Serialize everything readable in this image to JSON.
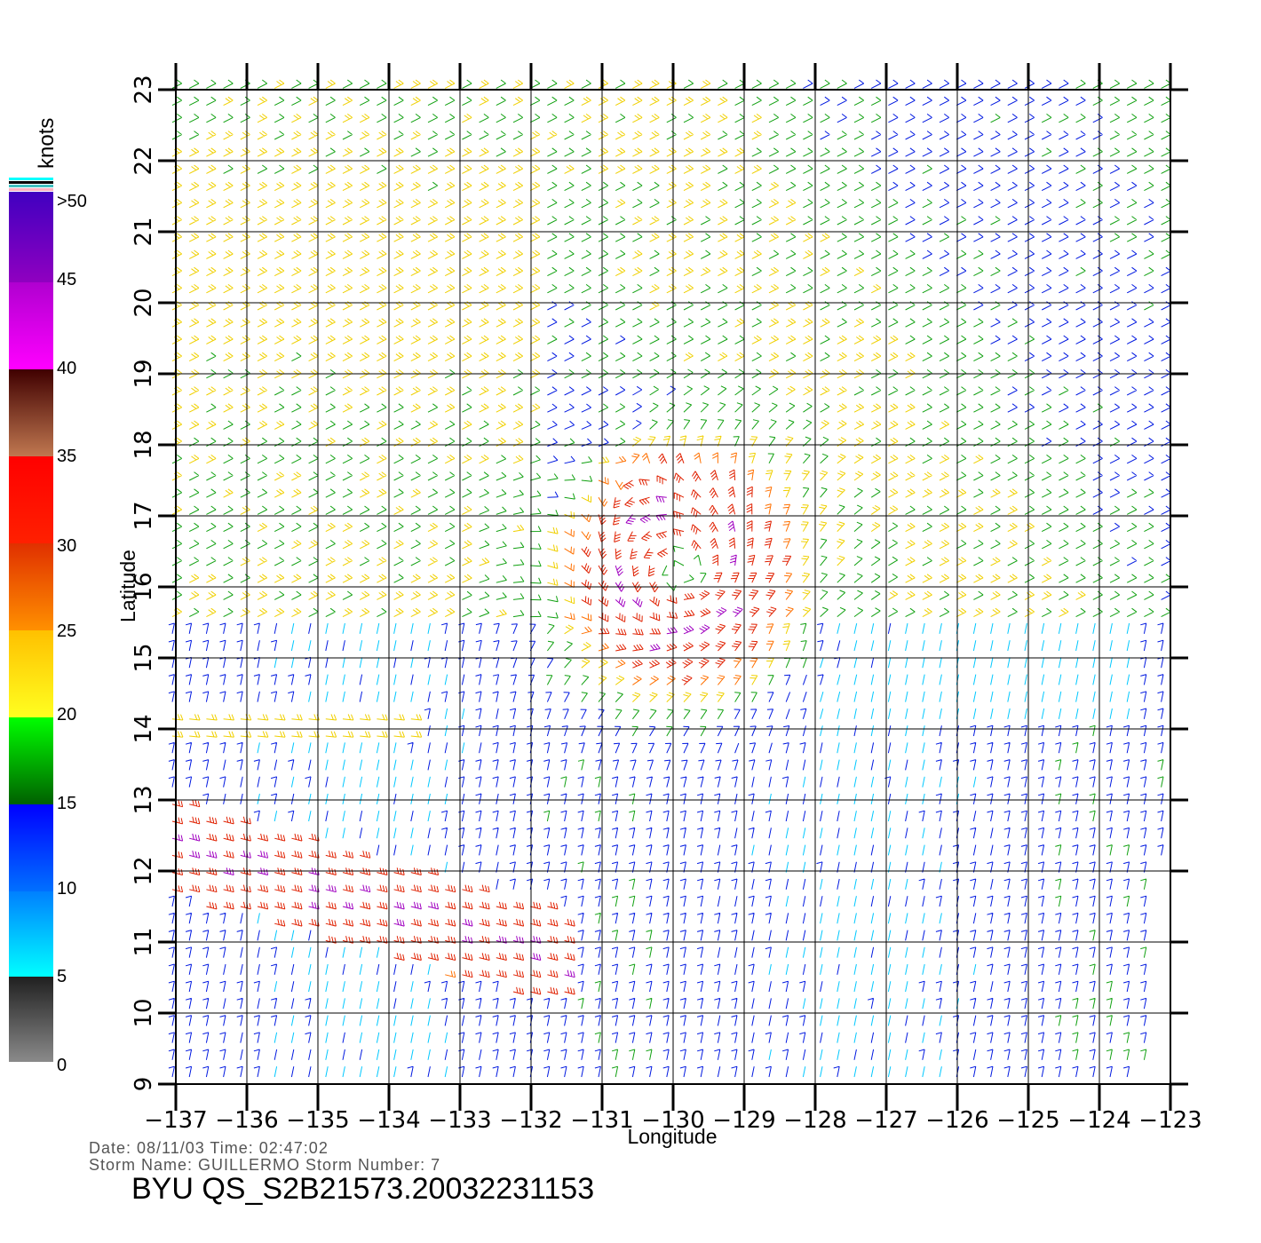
{
  "title": "BYU  QS_S2B21573.20032231153",
  "info": {
    "date_time": "Date: 08/11/03   Time: 02:47:02",
    "storm": "Storm Name: GUILLERMO   Storm Number: 7"
  },
  "axes": {
    "xlabel": "Longitude",
    "ylabel": "Latitude",
    "lon_range": [
      -137,
      -123
    ],
    "lat_range": [
      9,
      23
    ],
    "lon_ticks": [
      "−137",
      "−136",
      "−135",
      "−134",
      "−133",
      "−132",
      "−131",
      "−130",
      "−129",
      "−128",
      "−127",
      "−126",
      "−125",
      "−124",
      "−123"
    ],
    "lat_ticks": [
      "9",
      "10",
      "11",
      "12",
      "13",
      "14",
      "15",
      "16",
      "17",
      "18",
      "19",
      "20",
      "21",
      "22",
      "23"
    ]
  },
  "legend": {
    "unit": "knots",
    "labels": [
      ">50",
      "45",
      "40",
      "35",
      "30",
      "25",
      "20",
      "15",
      "10",
      "5",
      "0"
    ]
  },
  "colors": {
    "calm": "#404040",
    "light": "#00c8ff",
    "moderate": "#0018e0",
    "fresh": "#10a010",
    "strong": "#f0d000",
    "gale": "#ff7000",
    "storm": "#e02000",
    "violent": "#a000c0"
  },
  "storm_center": {
    "lon": -129.9,
    "lat": 16.2
  }
}
